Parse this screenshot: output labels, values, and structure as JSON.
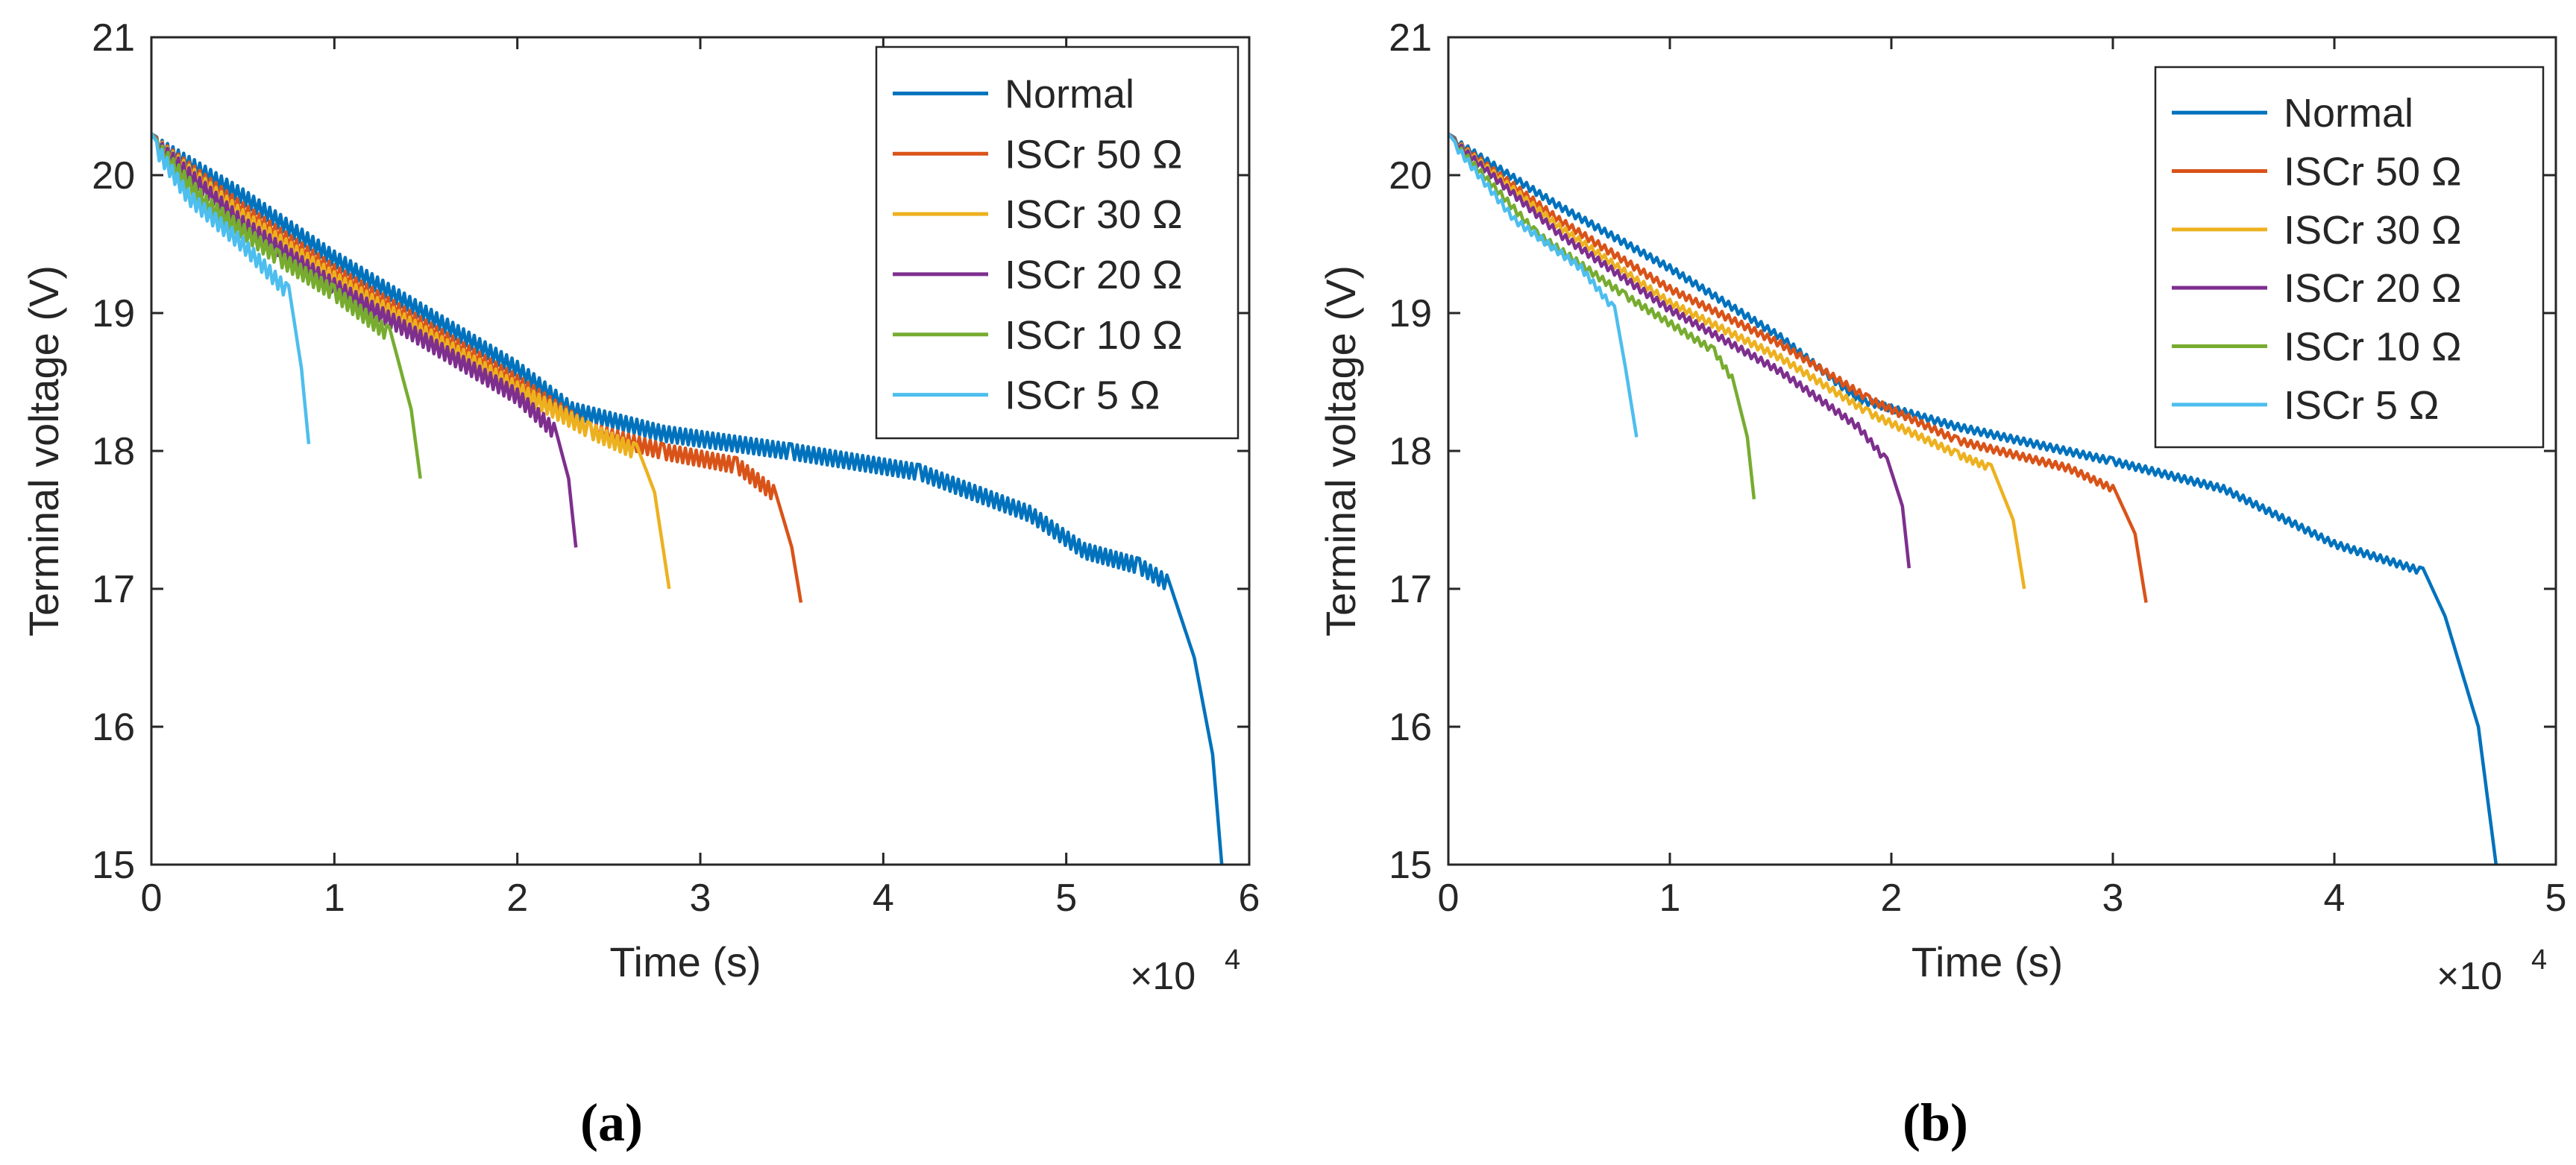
{
  "colors": {
    "normal": "#0072BD",
    "iscr50": "#D95319",
    "iscr30": "#EDB120",
    "iscr20": "#7E2F8E",
    "iscr10": "#77AC30",
    "iscr5": "#4DBEEE",
    "axis": "#262626"
  },
  "chart_data": [
    {
      "type": "line",
      "panel_label": "(a)",
      "xlabel": "Time (s)",
      "ylabel": "Terminal voltage (V)",
      "x_exponent_label": "×10",
      "x_exponent_power": "4",
      "xlim": [
        0,
        6
      ],
      "ylim": [
        15,
        21
      ],
      "xticks": [
        0,
        1,
        2,
        3,
        4,
        5,
        6
      ],
      "yticks": [
        15,
        16,
        17,
        18,
        19,
        20,
        21
      ],
      "x_scale_factor": 10000,
      "grid": false,
      "legend_position": "top-right",
      "oscillation_amplitude": 0.11,
      "series": [
        {
          "name": "Normal",
          "color_key": "normal",
          "points": [
            [
              0,
              20.3
            ],
            [
              0.5,
              19.9
            ],
            [
              1,
              19.45
            ],
            [
              1.5,
              19.05
            ],
            [
              2,
              18.65
            ],
            [
              2.3,
              18.35
            ],
            [
              2.8,
              18.18
            ],
            [
              3.5,
              18.05
            ],
            [
              4.2,
              17.9
            ],
            [
              4.8,
              17.6
            ],
            [
              5.1,
              17.33
            ],
            [
              5.4,
              17.22
            ],
            [
              5.55,
              17.1
            ],
            [
              5.7,
              16.5
            ],
            [
              5.8,
              15.8
            ],
            [
              5.85,
              15.0
            ]
          ]
        },
        {
          "name": "ISCr 50 Ω",
          "color_key": "iscr50",
          "points": [
            [
              0,
              20.3
            ],
            [
              0.5,
              19.8
            ],
            [
              1,
              19.35
            ],
            [
              1.5,
              18.95
            ],
            [
              2,
              18.55
            ],
            [
              2.4,
              18.2
            ],
            [
              2.8,
              18.05
            ],
            [
              3.2,
              17.95
            ],
            [
              3.4,
              17.75
            ],
            [
              3.5,
              17.3
            ],
            [
              3.55,
              16.9
            ]
          ]
        },
        {
          "name": "ISCr 30 Ω",
          "color_key": "iscr30",
          "points": [
            [
              0,
              20.3
            ],
            [
              0.5,
              19.75
            ],
            [
              1,
              19.3
            ],
            [
              1.5,
              18.9
            ],
            [
              2,
              18.5
            ],
            [
              2.4,
              18.2
            ],
            [
              2.65,
              18.05
            ],
            [
              2.75,
              17.7
            ],
            [
              2.83,
              17.0
            ]
          ]
        },
        {
          "name": "ISCr 20 Ω",
          "color_key": "iscr20",
          "points": [
            [
              0,
              20.3
            ],
            [
              0.5,
              19.7
            ],
            [
              1,
              19.25
            ],
            [
              1.5,
              18.85
            ],
            [
              2,
              18.45
            ],
            [
              2.2,
              18.2
            ],
            [
              2.28,
              17.8
            ],
            [
              2.32,
              17.3
            ]
          ]
        },
        {
          "name": "ISCr 10 Ω",
          "color_key": "iscr10",
          "points": [
            [
              0,
              20.3
            ],
            [
              0.3,
              19.85
            ],
            [
              0.7,
              19.45
            ],
            [
              1,
              19.2
            ],
            [
              1.3,
              18.9
            ],
            [
              1.42,
              18.3
            ],
            [
              1.47,
              17.8
            ]
          ]
        },
        {
          "name": "ISCr 5 Ω",
          "color_key": "iscr5",
          "points": [
            [
              0,
              20.3
            ],
            [
              0.2,
              19.9
            ],
            [
              0.5,
              19.55
            ],
            [
              0.75,
              19.2
            ],
            [
              0.82,
              18.6
            ],
            [
              0.86,
              18.05
            ]
          ]
        }
      ]
    },
    {
      "type": "line",
      "panel_label": "(b)",
      "xlabel": "Time (s)",
      "ylabel": "Terminal voltage (V)",
      "x_exponent_label": "×10",
      "x_exponent_power": "4",
      "xlim": [
        0,
        5
      ],
      "ylim": [
        15,
        21
      ],
      "xticks": [
        0,
        1,
        2,
        3,
        4,
        5
      ],
      "yticks": [
        15,
        16,
        17,
        18,
        19,
        20,
        21
      ],
      "x_scale_factor": 10000,
      "grid": false,
      "legend_position": "top-right",
      "oscillation_amplitude": 0.05,
      "series": [
        {
          "name": "Normal",
          "color_key": "normal",
          "points": [
            [
              0,
              20.3
            ],
            [
              0.5,
              19.8
            ],
            [
              1,
              19.35
            ],
            [
              1.5,
              18.85
            ],
            [
              1.85,
              18.4
            ],
            [
              2.3,
              18.2
            ],
            [
              3,
              17.95
            ],
            [
              3.5,
              17.75
            ],
            [
              4,
              17.35
            ],
            [
              4.4,
              17.15
            ],
            [
              4.5,
              16.8
            ],
            [
              4.65,
              16.0
            ],
            [
              4.73,
              15.0
            ]
          ]
        },
        {
          "name": "ISCr 50 Ω",
          "color_key": "iscr50",
          "points": [
            [
              0,
              20.3
            ],
            [
              0.5,
              19.7
            ],
            [
              1,
              19.2
            ],
            [
              1.5,
              18.8
            ],
            [
              1.9,
              18.4
            ],
            [
              2.3,
              18.1
            ],
            [
              2.8,
              17.9
            ],
            [
              3.0,
              17.75
            ],
            [
              3.1,
              17.4
            ],
            [
              3.15,
              16.9
            ]
          ]
        },
        {
          "name": "ISCr 30 Ω",
          "color_key": "iscr30",
          "points": [
            [
              0,
              20.3
            ],
            [
              0.5,
              19.65
            ],
            [
              1,
              19.1
            ],
            [
              1.5,
              18.7
            ],
            [
              1.9,
              18.3
            ],
            [
              2.3,
              18.0
            ],
            [
              2.45,
              17.9
            ],
            [
              2.55,
              17.5
            ],
            [
              2.6,
              17.0
            ]
          ]
        },
        {
          "name": "ISCr 20 Ω",
          "color_key": "iscr20",
          "points": [
            [
              0,
              20.3
            ],
            [
              0.5,
              19.6
            ],
            [
              1,
              19.05
            ],
            [
              1.5,
              18.6
            ],
            [
              1.85,
              18.2
            ],
            [
              1.98,
              17.95
            ],
            [
              2.05,
              17.6
            ],
            [
              2.08,
              17.15
            ]
          ]
        },
        {
          "name": "ISCr 10 Ω",
          "color_key": "iscr10",
          "points": [
            [
              0,
              20.3
            ],
            [
              0.4,
              19.6
            ],
            [
              0.8,
              19.15
            ],
            [
              1.2,
              18.75
            ],
            [
              1.28,
              18.55
            ],
            [
              1.35,
              18.1
            ],
            [
              1.38,
              17.65
            ]
          ]
        },
        {
          "name": "ISCr 5 Ω",
          "color_key": "iscr5",
          "points": [
            [
              0,
              20.3
            ],
            [
              0.3,
              19.7
            ],
            [
              0.6,
              19.35
            ],
            [
              0.75,
              19.05
            ],
            [
              0.8,
              18.6
            ],
            [
              0.85,
              18.1
            ]
          ]
        }
      ]
    }
  ]
}
